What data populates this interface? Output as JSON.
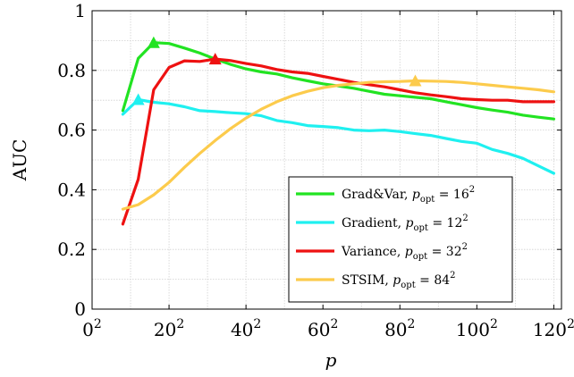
{
  "chart_data": {
    "type": "line",
    "xlabel": "p",
    "ylabel": "AUC",
    "xlim": [
      0,
      122
    ],
    "ylim": [
      0,
      1
    ],
    "x_ticks": [
      {
        "value": 0,
        "base": "0",
        "sup": "2"
      },
      {
        "value": 20,
        "base": "20",
        "sup": "2"
      },
      {
        "value": 40,
        "base": "40",
        "sup": "2"
      },
      {
        "value": 60,
        "base": "60",
        "sup": "2"
      },
      {
        "value": 80,
        "base": "80",
        "sup": "2"
      },
      {
        "value": 100,
        "base": "100",
        "sup": "2"
      },
      {
        "value": 120,
        "base": "120",
        "sup": "2"
      }
    ],
    "y_ticks": [
      {
        "value": 0,
        "label": "0"
      },
      {
        "value": 0.2,
        "label": "0.2"
      },
      {
        "value": 0.4,
        "label": "0.4"
      },
      {
        "value": 0.6,
        "label": "0.6"
      },
      {
        "value": 0.8,
        "label": "0.8"
      },
      {
        "value": 1,
        "label": "1"
      }
    ],
    "grid": true,
    "legend_position": "bottom-right",
    "series": [
      {
        "name": "Grad&Var",
        "p_opt_base": "16",
        "p_opt_sup": "2",
        "color": "#22e322",
        "marker_x": 16,
        "marker_y": 0.893,
        "x": [
          8,
          12,
          16,
          20,
          24,
          28,
          32,
          36,
          40,
          44,
          48,
          52,
          56,
          60,
          64,
          68,
          72,
          76,
          80,
          84,
          88,
          92,
          96,
          100,
          104,
          108,
          112,
          116,
          120
        ],
        "y": [
          0.665,
          0.84,
          0.893,
          0.89,
          0.875,
          0.858,
          0.838,
          0.82,
          0.805,
          0.795,
          0.788,
          0.775,
          0.765,
          0.755,
          0.748,
          0.74,
          0.73,
          0.72,
          0.715,
          0.71,
          0.705,
          0.695,
          0.685,
          0.675,
          0.667,
          0.66,
          0.65,
          0.643,
          0.637
        ]
      },
      {
        "name": "Gradient",
        "p_opt_base": "12",
        "p_opt_sup": "2",
        "color": "#1ff0f0",
        "marker_x": 12,
        "marker_y": 0.702,
        "x": [
          8,
          12,
          16,
          20,
          24,
          28,
          32,
          36,
          40,
          44,
          48,
          52,
          56,
          60,
          64,
          68,
          72,
          76,
          80,
          84,
          88,
          92,
          96,
          100,
          104,
          108,
          112,
          116,
          120
        ],
        "y": [
          0.653,
          0.702,
          0.693,
          0.688,
          0.678,
          0.665,
          0.662,
          0.658,
          0.655,
          0.648,
          0.632,
          0.625,
          0.615,
          0.612,
          0.608,
          0.6,
          0.598,
          0.6,
          0.595,
          0.588,
          0.582,
          0.572,
          0.562,
          0.556,
          0.535,
          0.522,
          0.505,
          0.48,
          0.455
        ]
      },
      {
        "name": "Variance",
        "p_opt_base": "32",
        "p_opt_sup": "2",
        "color": "#ee1111",
        "marker_x": 32,
        "marker_y": 0.838,
        "x": [
          8,
          12,
          16,
          20,
          24,
          28,
          32,
          36,
          40,
          44,
          48,
          52,
          56,
          60,
          64,
          68,
          72,
          76,
          80,
          84,
          88,
          92,
          96,
          100,
          104,
          108,
          112,
          116,
          120
        ],
        "y": [
          0.285,
          0.435,
          0.735,
          0.81,
          0.832,
          0.83,
          0.838,
          0.833,
          0.823,
          0.815,
          0.803,
          0.795,
          0.79,
          0.78,
          0.77,
          0.76,
          0.752,
          0.745,
          0.735,
          0.725,
          0.718,
          0.712,
          0.705,
          0.702,
          0.7,
          0.7,
          0.695,
          0.695,
          0.695
        ]
      },
      {
        "name": "STSIM",
        "p_opt_base": "84",
        "p_opt_sup": "2",
        "color": "#fccb4c",
        "marker_x": 84,
        "marker_y": 0.765,
        "x": [
          8,
          12,
          16,
          20,
          24,
          28,
          32,
          36,
          40,
          44,
          48,
          52,
          56,
          60,
          64,
          68,
          72,
          76,
          80,
          84,
          88,
          92,
          96,
          100,
          104,
          108,
          112,
          116,
          120
        ],
        "y": [
          0.335,
          0.35,
          0.383,
          0.425,
          0.475,
          0.522,
          0.565,
          0.605,
          0.64,
          0.67,
          0.695,
          0.715,
          0.73,
          0.742,
          0.75,
          0.755,
          0.76,
          0.762,
          0.763,
          0.765,
          0.764,
          0.763,
          0.76,
          0.755,
          0.75,
          0.745,
          0.74,
          0.735,
          0.728
        ]
      }
    ]
  }
}
